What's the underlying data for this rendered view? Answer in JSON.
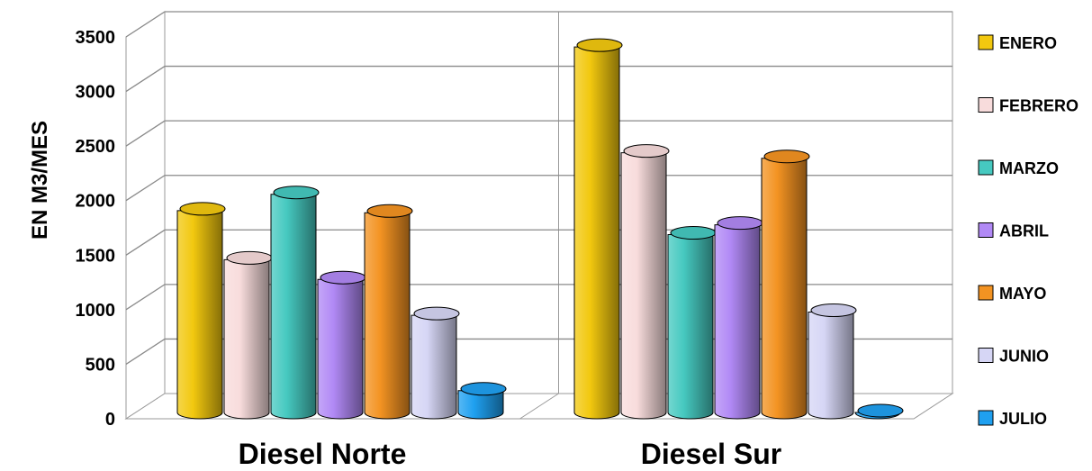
{
  "chart_data": {
    "type": "bar",
    "ylabel": "EN M3/MES",
    "ylim": [
      0,
      3500
    ],
    "yticks": [
      "0",
      "500",
      "1000",
      "1500",
      "2000",
      "2500",
      "3000",
      "3500"
    ],
    "categories": [
      "Diesel Norte",
      "Diesel Sur"
    ],
    "legend_position": "right",
    "grid": true,
    "series": [
      {
        "name": "ENERO",
        "color": "#f2c80f",
        "values": [
          1850,
          3350
        ]
      },
      {
        "name": "FEBRERO",
        "color": "#f8dcdc",
        "values": [
          1400,
          2380
        ]
      },
      {
        "name": "MARZO",
        "color": "#46c9c0",
        "values": [
          2000,
          1630
        ]
      },
      {
        "name": "ABRIL",
        "color": "#b189f5",
        "values": [
          1220,
          1720
        ]
      },
      {
        "name": "MAYO",
        "color": "#f39322",
        "values": [
          1830,
          2330
        ]
      },
      {
        "name": "JUNIO",
        "color": "#d6d6f5",
        "values": [
          890,
          920
        ]
      },
      {
        "name": "JULIO",
        "color": "#1fa0f0",
        "values": [
          200,
          0
        ]
      }
    ]
  }
}
